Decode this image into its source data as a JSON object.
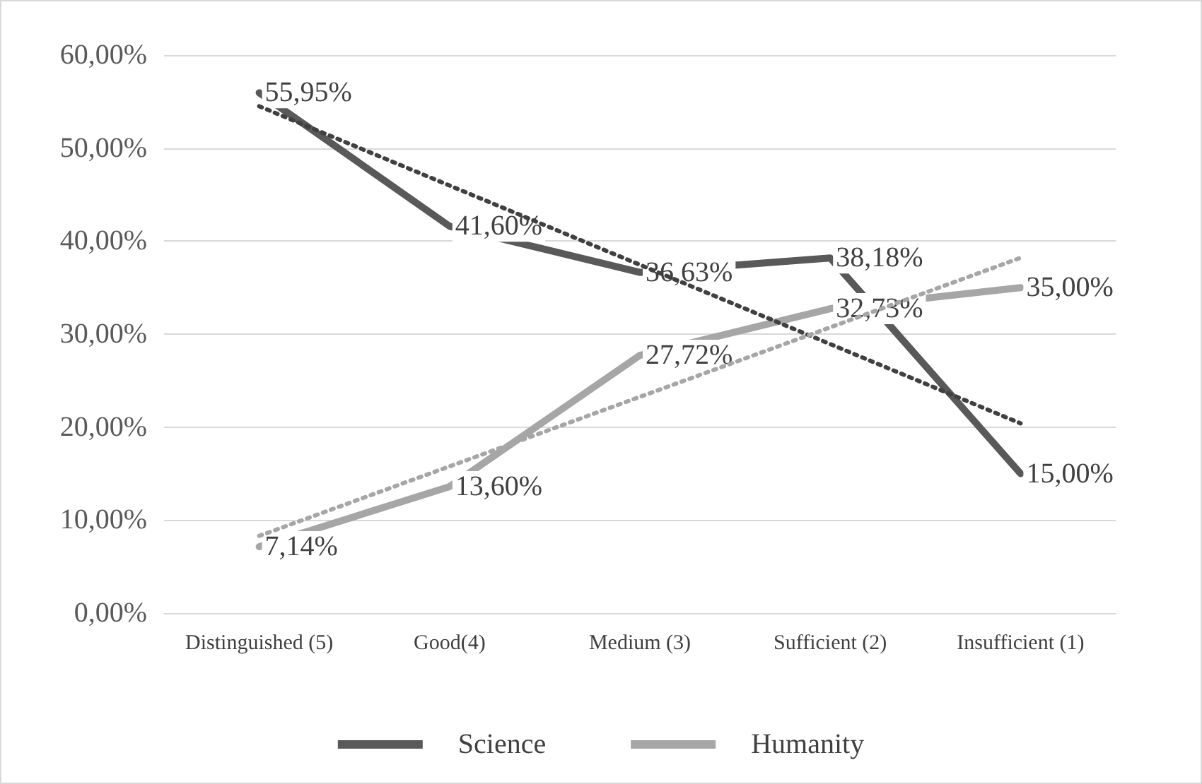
{
  "chart_data": {
    "type": "line",
    "categories": [
      "Distinguished (5)",
      "Good(4)",
      "Medium (3)",
      "Sufficient (2)",
      "Insufficient (1)"
    ],
    "series": [
      {
        "name": "Science",
        "color": "#595959",
        "values": [
          55.95,
          41.6,
          36.63,
          38.18,
          15.0
        ],
        "value_labels": [
          "55,95%",
          "41,60%",
          "36,63%",
          "38,18%",
          "15,00%"
        ]
      },
      {
        "name": "Humanity",
        "color": "#a6a6a6",
        "values": [
          7.14,
          13.6,
          27.72,
          32.73,
          35.0
        ],
        "value_labels": [
          "7,14%",
          "13,60%",
          "27,72%",
          "32,73%",
          "35,00%"
        ]
      },
      {
        "type": "line",
        "color": "#404040",
        "line_style": "dotted",
        "x": [
          "Distinguished (5)",
          "Insufficient (1)"
        ],
        "values": [
          54.5,
          20.4
        ]
      },
      {
        "type": "line",
        "color": "#a6a6a6",
        "line_style": "dotted",
        "x": [
          "Distinguished (5)",
          "Insufficient (1)"
        ],
        "values": [
          8.3,
          38.2
        ]
      }
    ],
    "ylim": [
      0,
      60
    ],
    "yticks": [
      {
        "value": 0,
        "label": "0,00%"
      },
      {
        "value": 10,
        "label": "10,00%"
      },
      {
        "value": 20,
        "label": "20,00%"
      },
      {
        "value": 30,
        "label": "30,00%"
      },
      {
        "value": 40,
        "label": "40,00%"
      },
      {
        "value": 50,
        "label": "50,00%"
      },
      {
        "value": 60,
        "label": "60,00%"
      }
    ],
    "grid": "y",
    "legend": "bottom",
    "marker": "none",
    "line_style": "solid"
  }
}
